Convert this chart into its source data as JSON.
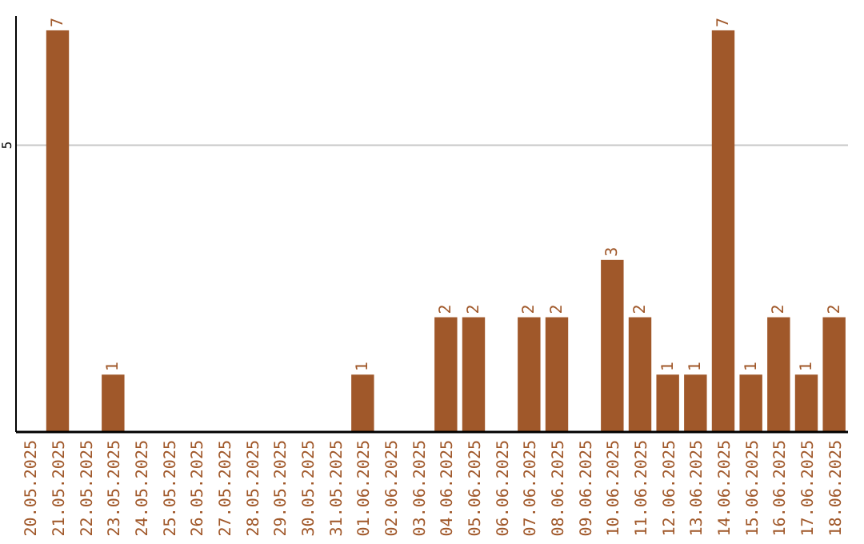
{
  "chart_data": {
    "type": "bar",
    "categories": [
      "20.05.2025",
      "21.05.2025",
      "22.05.2025",
      "23.05.2025",
      "24.05.2025",
      "25.05.2025",
      "26.05.2025",
      "27.05.2025",
      "28.05.2025",
      "29.05.2025",
      "30.05.2025",
      "31.05.2025",
      "01.06.2025",
      "02.06.2025",
      "03.06.2025",
      "04.06.2025",
      "05.06.2025",
      "06.06.2025",
      "07.06.2025",
      "08.06.2025",
      "09.06.2025",
      "10.06.2025",
      "11.06.2025",
      "12.06.2025",
      "13.06.2025",
      "14.06.2025",
      "15.06.2025",
      "16.06.2025",
      "17.06.2025",
      "18.06.2025"
    ],
    "values": [
      0,
      7,
      0,
      1,
      0,
      0,
      0,
      0,
      0,
      0,
      0,
      0,
      1,
      0,
      0,
      2,
      2,
      0,
      2,
      2,
      0,
      3,
      2,
      1,
      1,
      7,
      1,
      2,
      1,
      2
    ],
    "value_labels": [
      null,
      "7",
      null,
      "1",
      null,
      null,
      null,
      null,
      null,
      null,
      null,
      null,
      "1",
      null,
      null,
      "2",
      "2",
      null,
      "2",
      "2",
      null,
      "3",
      "2",
      "1",
      "1",
      "7",
      "1",
      "2",
      "1",
      "2"
    ],
    "color": "#a0582a",
    "ylim": [
      0,
      7.25
    ],
    "yticks": [
      5
    ],
    "grid": "y"
  }
}
